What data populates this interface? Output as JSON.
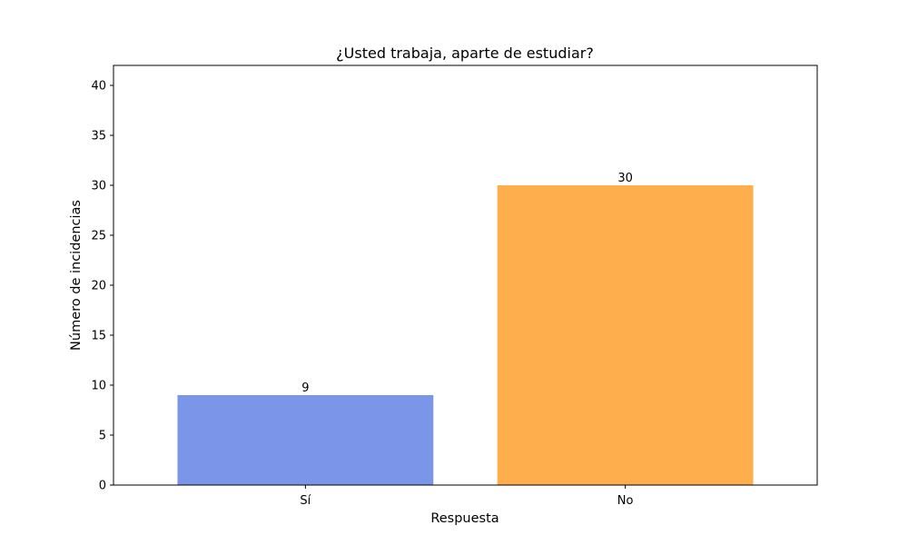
{
  "chart_data": {
    "type": "bar",
    "title": "¿Usted trabaja, aparte de estudiar?",
    "xlabel": "Respuesta",
    "ylabel": "Número de incidencias",
    "categories": [
      "Sí",
      "No"
    ],
    "values": [
      9,
      30
    ],
    "data_labels": [
      "9",
      "30"
    ],
    "colors": [
      "#7b96e8",
      "#feae4d"
    ],
    "ylim": [
      0,
      42
    ],
    "yticks": [
      0,
      5,
      10,
      15,
      20,
      25,
      30,
      35,
      40
    ],
    "grid": false,
    "legend": "none"
  }
}
